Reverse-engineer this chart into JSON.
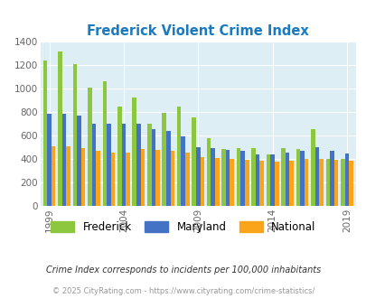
{
  "title": "Frederick Violent Crime Index",
  "years": [
    1999,
    2000,
    2001,
    2002,
    2003,
    2004,
    2005,
    2006,
    2007,
    2008,
    2009,
    2010,
    2011,
    2012,
    2013,
    2014,
    2015,
    2016,
    2017,
    2018,
    2019
  ],
  "frederick": [
    1240,
    1320,
    1205,
    1005,
    1065,
    845,
    920,
    700,
    790,
    850,
    750,
    575,
    480,
    495,
    490,
    435,
    495,
    480,
    655,
    400,
    400
  ],
  "maryland": [
    785,
    785,
    770,
    700,
    700,
    700,
    700,
    650,
    635,
    590,
    500,
    490,
    475,
    470,
    440,
    435,
    455,
    465,
    500,
    465,
    445
  ],
  "national": [
    505,
    505,
    495,
    470,
    455,
    455,
    480,
    475,
    470,
    455,
    415,
    405,
    395,
    390,
    385,
    375,
    385,
    395,
    400,
    390,
    385
  ],
  "xtick_labels": [
    "1999",
    "2004",
    "2009",
    "2014",
    "2019"
  ],
  "xtick_positions": [
    0,
    5,
    10,
    15,
    20
  ],
  "ylim": [
    0,
    1400
  ],
  "yticks": [
    0,
    200,
    400,
    600,
    800,
    1000,
    1200,
    1400
  ],
  "color_frederick": "#8dc63f",
  "color_maryland": "#4472c4",
  "color_national": "#faa519",
  "bg_color": "#ddeef4",
  "title_color": "#1a7abf",
  "subtitle": "Crime Index corresponds to incidents per 100,000 inhabitants",
  "footer": "© 2025 CityRating.com - https://www.cityrating.com/crime-statistics/",
  "bar_width": 0.28
}
